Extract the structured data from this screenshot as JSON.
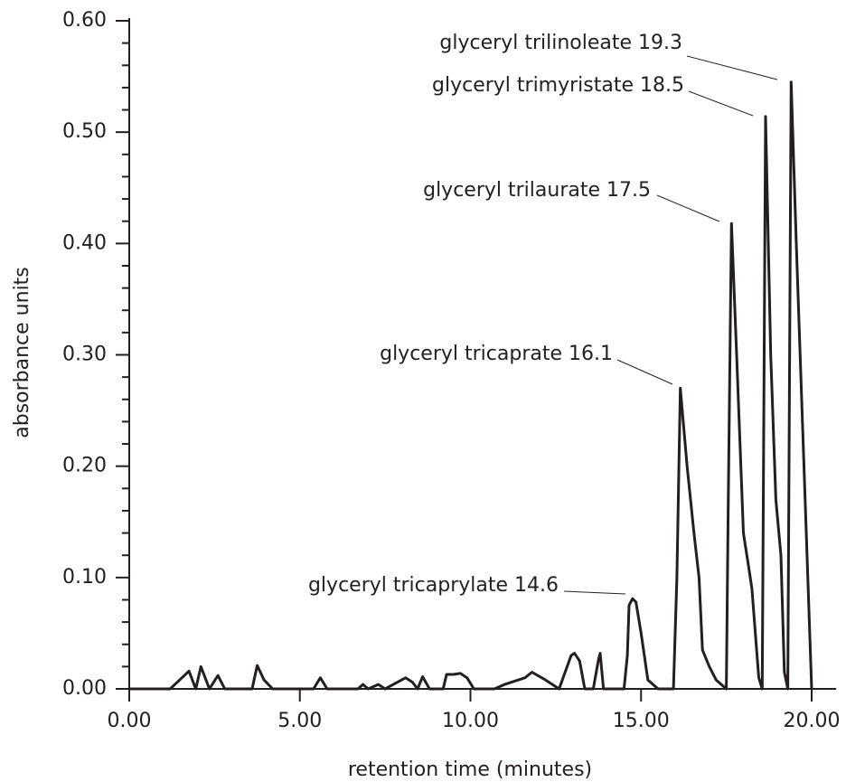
{
  "chart_data": {
    "type": "line",
    "x_label": "retention time (minutes)",
    "y_label": "absorbance units",
    "xlim": [
      0,
      20.7
    ],
    "ylim": [
      0,
      0.6
    ],
    "xticks": [
      {
        "value": 0,
        "label": "0.00"
      },
      {
        "value": 5,
        "label": "5.00"
      },
      {
        "value": 10,
        "label": "10.00"
      },
      {
        "value": 15,
        "label": "15.00"
      },
      {
        "value": 20,
        "label": "20.00"
      }
    ],
    "yticks": [
      {
        "value": 0,
        "label": "0.00"
      },
      {
        "value": 0.1,
        "label": "0.10"
      },
      {
        "value": 0.2,
        "label": "0.20"
      },
      {
        "value": 0.3,
        "label": "0.30"
      },
      {
        "value": 0.4,
        "label": "0.40"
      },
      {
        "value": 0.5,
        "label": "0.50"
      },
      {
        "value": 0.6,
        "label": "0.60"
      }
    ],
    "yminorticks": [
      0.02,
      0.04,
      0.06,
      0.08,
      0.12,
      0.14,
      0.16,
      0.18,
      0.22,
      0.24,
      0.26,
      0.28,
      0.32,
      0.34,
      0.36,
      0.38,
      0.42,
      0.44,
      0.46,
      0.48,
      0.52,
      0.54,
      0.56,
      0.58
    ],
    "x": [
      0,
      1.2,
      1.75,
      1.95,
      2.1,
      2.35,
      2.6,
      2.8,
      3.6,
      3.75,
      3.95,
      4.2,
      5.4,
      5.6,
      5.8,
      6.7,
      6.85,
      7.0,
      7.3,
      7.5,
      8.1,
      8.3,
      8.45,
      8.6,
      8.8,
      9.2,
      9.3,
      9.5,
      9.7,
      9.9,
      10.1,
      10.7,
      11.0,
      11.6,
      11.8,
      12.2,
      12.6,
      12.95,
      13.05,
      13.2,
      13.35,
      13.6,
      13.75,
      13.8,
      13.9,
      14.5,
      14.6,
      14.65,
      14.75,
      14.85,
      15.0,
      15.2,
      15.5,
      15.95,
      16.05,
      16.15,
      16.35,
      16.55,
      16.7,
      16.8,
      17.0,
      17.2,
      17.5,
      17.55,
      17.65,
      17.8,
      18.0,
      18.15,
      18.25,
      18.45,
      18.55,
      18.65,
      18.8,
      18.95,
      19.1,
      19.2,
      19.3,
      19.4,
      19.55,
      20.0
    ],
    "series": [
      {
        "color": "#231f20",
        "values": [
          0,
          0,
          0.016,
          0,
          0.02,
          0,
          0.012,
          0,
          0,
          0.021,
          0.008,
          0,
          0,
          0.01,
          0,
          0,
          0.004,
          0,
          0.004,
          0,
          0.01,
          0.006,
          0,
          0.011,
          0,
          0,
          0.013,
          0.013,
          0.014,
          0.01,
          0,
          0,
          0.004,
          0.01,
          0.015,
          0.008,
          0,
          0.03,
          0.032,
          0.025,
          0,
          0,
          0.026,
          0.032,
          0,
          0,
          0.03,
          0.075,
          0.081,
          0.078,
          0.05,
          0.008,
          0,
          0,
          0.1,
          0.27,
          0.2,
          0.14,
          0.1,
          0.035,
          0.02,
          0.008,
          0,
          0.15,
          0.418,
          0.3,
          0.14,
          0.11,
          0.09,
          0.01,
          0,
          0.514,
          0.3,
          0.17,
          0.12,
          0.015,
          0,
          0.545,
          0.4,
          0
        ]
      }
    ],
    "annotations": [
      "glyceryl trilinoleate 19.3",
      "glyceryl trimyristate 18.5",
      "glyceryl trilaurate 17.5",
      "glyceryl tricaprate 16.1",
      "glyceryl tricaprylate 14.6"
    ]
  }
}
